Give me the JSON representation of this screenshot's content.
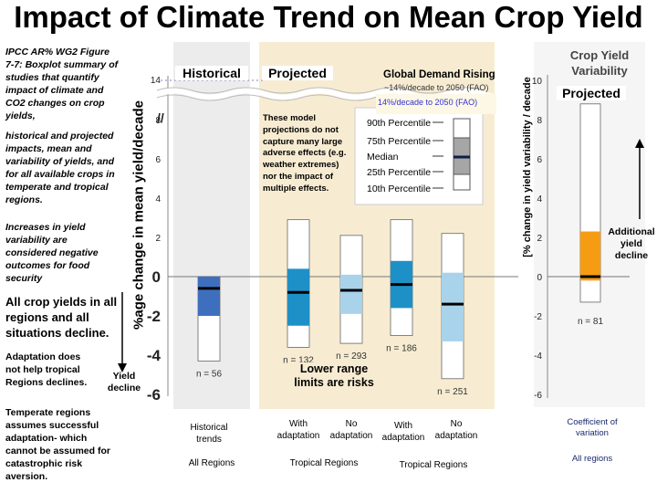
{
  "slide": {
    "title": "Impact of Climate Trend on Mean Crop Yield",
    "notes": {
      "figure_caption": "IPCC AR% WG2 Figure 7-7: Boxplot summary of studies that quantify impact of climate and CO2 changes on crop yields,",
      "summary": "historical and projected impacts, mean and variability of yields, and for all available crops in temperate and tropical regions.",
      "variability": "Increases in yield variability are considered negative outcomes for food security",
      "decline": "All crop yields in all regions and all situations decline.",
      "adaptation": "Adaptation does not help tropical Regions declines.",
      "temperate": "Temperate regions assumes successful adaptation- which cannot be assumed for catastrophic risk aversion."
    },
    "yield_decline_label": "Yield decline",
    "lower_range_note": "Lower range limits are risks",
    "additional_decline_label": "Additional yield decline",
    "model_note": "These model projections do not capture many large adverse effects (e.g. weather extremes) nor the impact of multiple effects.",
    "global_demand": {
      "title": "Global Demand Rising",
      "line1": "~14%/decade to 2050 (FAO)",
      "line2": "14%/decade to 2050 (FAO)"
    },
    "legend": {
      "p90": "90th Percentile",
      "p75": "75th Percentile",
      "median": "Median",
      "p25": "25th Percentile",
      "p10": "10th Percentile"
    },
    "panel_headers": {
      "historical": "Historical",
      "projected": "Projected",
      "variability_title": "Crop Yield Variability",
      "variability_projected": "Projected"
    },
    "group_labels": {
      "all_regions": "All Regions",
      "tropical_1": "Tropical Regions",
      "tropical_2": "Tropical Regions",
      "all_regions_right": "All regions"
    },
    "colors": {
      "historical_bg": "#ececec",
      "projected_bg": "#f7ecd2",
      "right_bg": "#f5f5f5",
      "box_historical": "#3e6fbf",
      "box_dark": "#1e90c8",
      "box_light": "#a9d3ea",
      "box_orange": "#f59c12",
      "legend_gray": "#a6a6a6",
      "demand_blue": "#3333cc"
    }
  },
  "chart_data": [
    {
      "type": "box",
      "ylabel": "%age change in mean yield/decade",
      "ylim": [
        -6,
        14
      ],
      "yticks": [
        14,
        8,
        6,
        4,
        2,
        0,
        -2,
        -4,
        -6
      ],
      "axis_break": "between 8 and 14",
      "categories": [
        "Historical trends",
        "With adaptation",
        "No adaptation",
        "With adaptation",
        "No adaptation"
      ],
      "boxes": [
        {
          "label": "Historical trends",
          "p10": -4.3,
          "p25": -2.0,
          "median": -0.6,
          "p75": 0.0,
          "p90": 0.0,
          "n": "n = 56"
        },
        {
          "label": "With adaptation",
          "p10": -3.6,
          "p25": -2.5,
          "median": -0.8,
          "p75": 0.4,
          "p90": 2.9,
          "n": "n = 132"
        },
        {
          "label": "No adaptation",
          "p10": -3.4,
          "p25": -1.9,
          "median": -0.7,
          "p75": 0.1,
          "p90": 2.1,
          "n": "n = 293"
        },
        {
          "label": "With adaptation",
          "p10": -3.0,
          "p25": -1.6,
          "median": -0.4,
          "p75": 0.8,
          "p90": 2.9,
          "n": "n = 186"
        },
        {
          "label": "No adaptation",
          "p10": -5.2,
          "p25": -3.3,
          "median": -1.4,
          "p75": 0.2,
          "p90": 2.2,
          "n": "n = 251"
        }
      ]
    },
    {
      "type": "box",
      "ylabel": "[% change in yield variability / decade",
      "ylim": [
        -6,
        10
      ],
      "yticks": [
        10,
        8,
        6,
        4,
        2,
        0,
        -2,
        -4,
        -6
      ],
      "categories": [
        "Coefficient of variation"
      ],
      "boxes": [
        {
          "label": "Coefficient of variation",
          "p10": -1.3,
          "p25": -0.2,
          "median": 0.0,
          "p75": 2.3,
          "p90": 8.8,
          "n": "n = 81"
        }
      ]
    }
  ]
}
